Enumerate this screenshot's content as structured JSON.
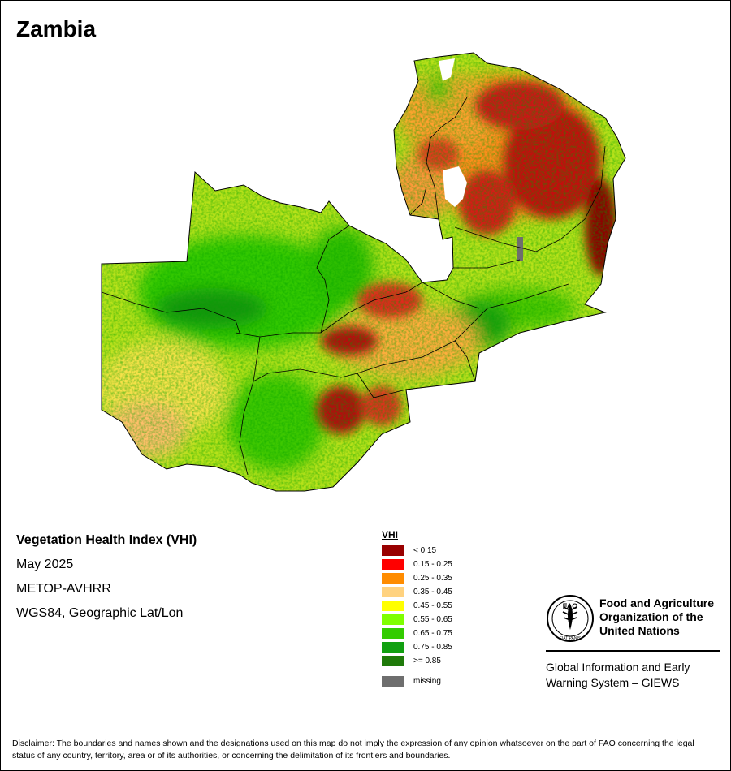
{
  "title": "Zambia",
  "info": {
    "index_name": "Vegetation Health Index (VHI)",
    "period": "May 2025",
    "sensor": "METOP-AVHRR",
    "projection": "WGS84, Geographic Lat/Lon"
  },
  "legend": {
    "title": "VHI",
    "classes": [
      {
        "label": "< 0.15",
        "color": "#990000"
      },
      {
        "label": "0.15 - 0.25",
        "color": "#ff0000"
      },
      {
        "label": "0.25 - 0.35",
        "color": "#ff8c00"
      },
      {
        "label": "0.35 - 0.45",
        "color": "#ffd27f"
      },
      {
        "label": "0.45 - 0.55",
        "color": "#ffff00"
      },
      {
        "label": "0.55 - 0.65",
        "color": "#7fff00"
      },
      {
        "label": "0.65 - 0.75",
        "color": "#33cc00"
      },
      {
        "label": "0.75 - 0.85",
        "color": "#11a011"
      },
      {
        "label": ">= 0.85",
        "color": "#1f7a0a"
      }
    ],
    "missing": {
      "label": "missing",
      "color": "#6e6e6e"
    }
  },
  "organization": {
    "name_lines": [
      "Food and Agriculture",
      "Organization of the",
      "United Nations"
    ],
    "logo_text": "FAO",
    "logo_motto": "FIAT PANIS",
    "program_lines": [
      "Global Information and Early",
      "Warning System – GIEWS"
    ]
  },
  "disclaimer": "Disclaimer: The boundaries and names shown and the designations used on this map do not imply the expression of any opinion whatsoever on the part of FAO concerning the legal status of any country, territory, area or of its authorities, or concerning the delimitation of its frontiers and boundaries."
}
